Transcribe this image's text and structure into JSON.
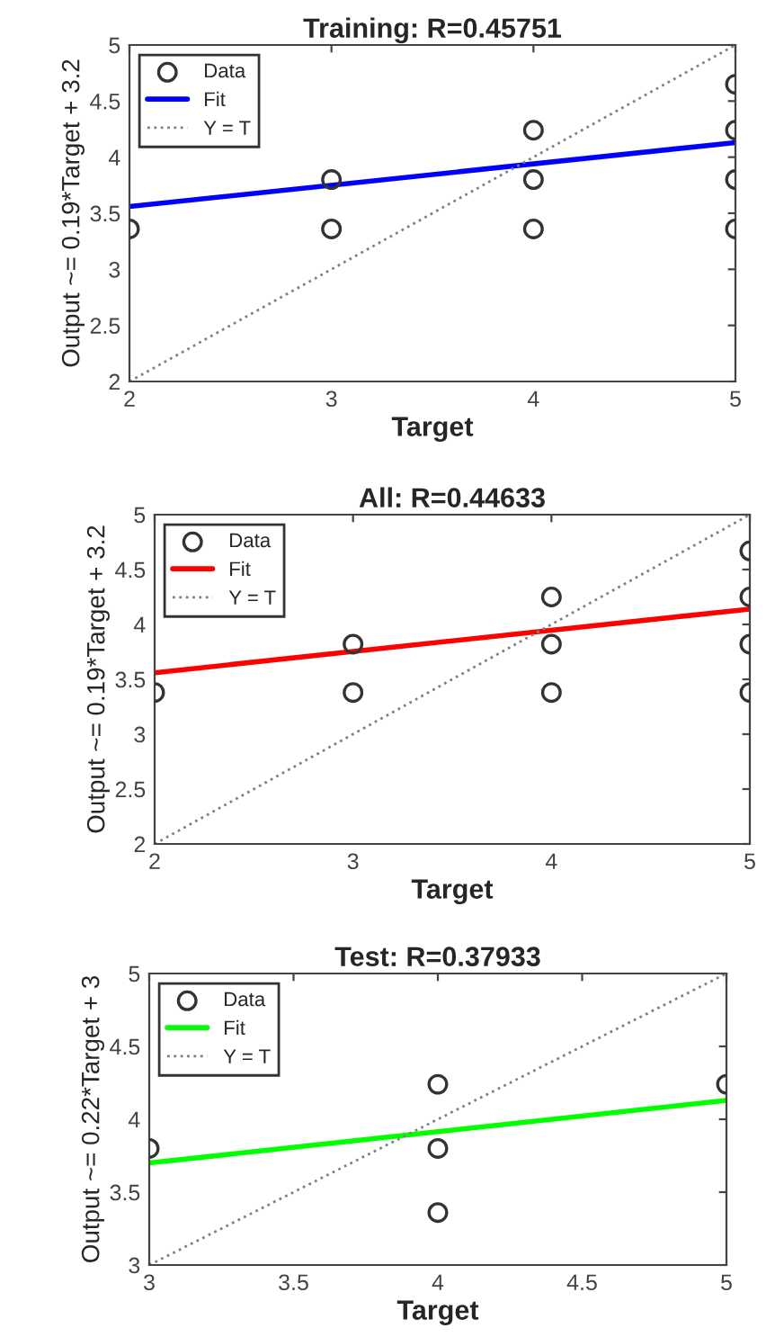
{
  "chart_data": [
    {
      "type": "scatter",
      "title": "Training: R=0.45751",
      "xlabel": "Target",
      "ylabel": "Output ~= 0.19*Target + 3.2",
      "xlim": [
        2,
        5
      ],
      "ylim": [
        2,
        5
      ],
      "xticks": [
        2,
        3,
        4,
        5
      ],
      "yticks": [
        2,
        2.5,
        3,
        3.5,
        4,
        4.5,
        5
      ],
      "grid": false,
      "legend": "top left",
      "series": [
        {
          "name": "Data",
          "marker": "circle",
          "color": "#333333",
          "x": [
            2,
            3,
            3,
            4,
            4,
            4,
            5,
            5,
            5,
            5
          ],
          "values": [
            3.36,
            3.8,
            3.36,
            4.24,
            3.8,
            3.36,
            4.65,
            4.24,
            3.8,
            3.36
          ]
        },
        {
          "name": "Fit",
          "type": "line",
          "marker": "none",
          "line_style": "solid",
          "color": "#0000ff",
          "x": [
            2,
            5
          ],
          "values": [
            3.56,
            4.13
          ]
        },
        {
          "name": "Y = T",
          "type": "line",
          "marker": "none",
          "line_style": "dotted",
          "color": "#808080",
          "x": [
            2,
            5
          ],
          "values": [
            2,
            5
          ]
        }
      ]
    },
    {
      "type": "scatter",
      "title": "All: R=0.44633",
      "xlabel": "Target",
      "ylabel": "Output ~= 0.19*Target + 3.2",
      "xlim": [
        2,
        5
      ],
      "ylim": [
        2,
        5
      ],
      "xticks": [
        2,
        3,
        4,
        5
      ],
      "yticks": [
        2,
        2.5,
        3,
        3.5,
        4,
        4.5,
        5
      ],
      "grid": false,
      "legend": "top left",
      "series": [
        {
          "name": "Data",
          "marker": "circle",
          "color": "#333333",
          "x": [
            2,
            3,
            3,
            4,
            4,
            4,
            5,
            5,
            5,
            5
          ],
          "values": [
            3.38,
            3.82,
            3.38,
            4.25,
            3.82,
            3.38,
            4.67,
            4.25,
            3.82,
            3.38
          ]
        },
        {
          "name": "Fit",
          "type": "line",
          "marker": "none",
          "line_style": "solid",
          "color": "#ff0000",
          "x": [
            2,
            5
          ],
          "values": [
            3.56,
            4.14
          ]
        },
        {
          "name": "Y = T",
          "type": "line",
          "marker": "none",
          "line_style": "dotted",
          "color": "#808080",
          "x": [
            2,
            5
          ],
          "values": [
            2,
            5
          ]
        }
      ]
    },
    {
      "type": "scatter",
      "title": "Test: R=0.37933",
      "xlabel": "Target",
      "ylabel": "Output ~= 0.22*Target + 3",
      "xlim": [
        3,
        5
      ],
      "ylim": [
        3,
        5
      ],
      "xticks": [
        3,
        3.5,
        4,
        4.5,
        5
      ],
      "yticks": [
        3,
        3.5,
        4,
        4.5,
        5
      ],
      "grid": false,
      "legend": "top left",
      "series": [
        {
          "name": "Data",
          "marker": "circle",
          "color": "#333333",
          "x": [
            3,
            4,
            4,
            4,
            5
          ],
          "values": [
            3.8,
            4.24,
            3.8,
            3.36,
            4.24
          ]
        },
        {
          "name": "Fit",
          "type": "line",
          "marker": "none",
          "line_style": "solid",
          "color": "#00ff00",
          "x": [
            3,
            5
          ],
          "values": [
            3.7,
            4.13
          ]
        },
        {
          "name": "Y = T",
          "type": "line",
          "marker": "none",
          "line_style": "dotted",
          "color": "#808080",
          "x": [
            3,
            5
          ],
          "values": [
            3,
            5
          ]
        }
      ]
    }
  ]
}
